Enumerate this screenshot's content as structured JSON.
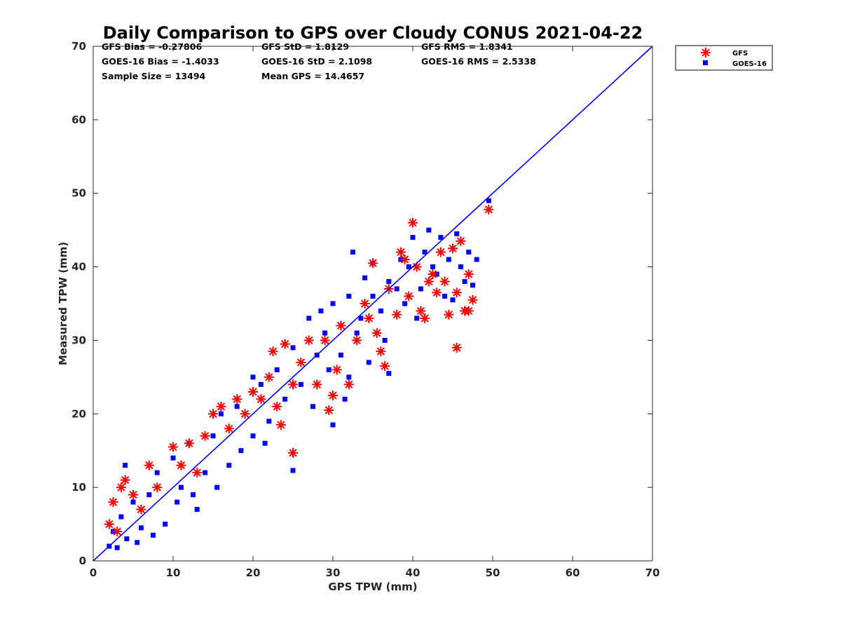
{
  "chart_data": {
    "type": "scatter",
    "title": "Daily Comparison to GPS over Cloudy CONUS 2021-04-22",
    "xlabel": "GPS TPW (mm)",
    "ylabel": "Measured TPW (mm)",
    "xlim": [
      0,
      70
    ],
    "ylim": [
      0,
      70
    ],
    "xticks": [
      "0",
      "10",
      "20",
      "30",
      "40",
      "50",
      "60",
      "70"
    ],
    "yticks": [
      "0",
      "10",
      "20",
      "30",
      "40",
      "50",
      "60",
      "70"
    ],
    "grid": false,
    "legend_position": "outside-top-right",
    "stats": {
      "gfs_bias": "GFS Bias = -0.27806",
      "gfs_std": "GFS StD = 1.8129",
      "gfs_rms": "GFS RMS = 1.8341",
      "goes_bias": "GOES-16 Bias = -1.4033",
      "goes_std": "GOES-16 StD = 2.1098",
      "goes_rms": "GOES-16 RMS = 2.5338",
      "sample_size": "Sample Size = 13494",
      "mean_gps": "Mean GPS = 14.4657"
    },
    "reference_line": {
      "name": "1:1 line",
      "x": [
        0,
        70
      ],
      "y": [
        0,
        70
      ],
      "color": "#0000ff"
    },
    "series": [
      {
        "name": "GOES-16",
        "marker": "square",
        "color": "#0000ff",
        "points": [
          [
            2,
            2
          ],
          [
            2.5,
            4
          ],
          [
            3,
            1.8
          ],
          [
            3.5,
            6
          ],
          [
            4,
            13
          ],
          [
            4.2,
            3
          ],
          [
            5,
            8
          ],
          [
            5.5,
            2.5
          ],
          [
            6,
            4.5
          ],
          [
            7,
            9
          ],
          [
            7.5,
            3.5
          ],
          [
            8,
            12
          ],
          [
            9,
            5
          ],
          [
            10,
            14
          ],
          [
            10.5,
            8
          ],
          [
            11,
            10
          ],
          [
            12,
            16
          ],
          [
            12.5,
            9
          ],
          [
            13,
            7
          ],
          [
            14,
            12
          ],
          [
            15,
            17
          ],
          [
            15.5,
            10
          ],
          [
            16,
            20
          ],
          [
            17,
            13
          ],
          [
            18,
            21
          ],
          [
            18.5,
            15
          ],
          [
            20,
            25
          ],
          [
            20,
            17
          ],
          [
            21,
            24
          ],
          [
            21.5,
            16
          ],
          [
            22,
            19
          ],
          [
            23,
            26
          ],
          [
            24,
            22
          ],
          [
            25,
            12.3
          ],
          [
            25,
            29
          ],
          [
            26,
            24
          ],
          [
            27,
            33
          ],
          [
            27.5,
            21
          ],
          [
            28,
            28
          ],
          [
            28.5,
            34
          ],
          [
            29,
            31
          ],
          [
            29.5,
            26
          ],
          [
            30,
            18.5
          ],
          [
            30,
            35
          ],
          [
            31,
            28
          ],
          [
            31.5,
            22
          ],
          [
            32,
            25
          ],
          [
            32,
            36
          ],
          [
            32.5,
            42
          ],
          [
            33,
            31
          ],
          [
            33.5,
            33
          ],
          [
            34,
            38.5
          ],
          [
            34.5,
            27
          ],
          [
            35,
            36
          ],
          [
            35,
            40.5
          ],
          [
            36,
            34
          ],
          [
            36.5,
            30
          ],
          [
            37,
            38
          ],
          [
            37,
            25.5
          ],
          [
            38,
            37
          ],
          [
            38.5,
            41
          ],
          [
            39,
            35
          ],
          [
            39.5,
            40
          ],
          [
            40,
            44
          ],
          [
            40.5,
            33
          ],
          [
            41,
            37
          ],
          [
            41.5,
            42
          ],
          [
            42,
            45
          ],
          [
            42.5,
            40
          ],
          [
            43,
            39
          ],
          [
            43.5,
            44
          ],
          [
            44,
            36
          ],
          [
            44.5,
            41
          ],
          [
            45,
            35.5
          ],
          [
            45.5,
            44.5
          ],
          [
            46,
            40
          ],
          [
            46.5,
            38
          ],
          [
            47,
            42
          ],
          [
            47.5,
            37.5
          ],
          [
            48,
            41
          ],
          [
            49.5,
            49
          ]
        ]
      },
      {
        "name": "GFS",
        "marker": "asterisk",
        "color": "#ff0000",
        "points": [
          [
            2,
            5
          ],
          [
            2.5,
            8
          ],
          [
            3,
            4
          ],
          [
            3.5,
            10
          ],
          [
            4,
            11
          ],
          [
            5,
            9
          ],
          [
            6,
            7
          ],
          [
            7,
            13
          ],
          [
            8,
            10
          ],
          [
            10,
            15.5
          ],
          [
            11,
            13
          ],
          [
            12,
            16
          ],
          [
            13,
            12
          ],
          [
            14,
            17
          ],
          [
            15,
            20
          ],
          [
            16,
            21
          ],
          [
            17,
            18
          ],
          [
            18,
            22
          ],
          [
            19,
            20
          ],
          [
            20,
            23
          ],
          [
            21,
            22
          ],
          [
            22,
            25
          ],
          [
            22.5,
            28.5
          ],
          [
            23,
            21
          ],
          [
            23.5,
            18.5
          ],
          [
            24,
            29.5
          ],
          [
            25,
            14.7
          ],
          [
            25,
            24
          ],
          [
            26,
            27
          ],
          [
            27,
            30
          ],
          [
            28,
            24
          ],
          [
            29,
            30
          ],
          [
            29.5,
            20.5
          ],
          [
            30,
            22.5
          ],
          [
            30.5,
            26
          ],
          [
            31,
            32
          ],
          [
            32,
            24
          ],
          [
            33,
            30
          ],
          [
            34,
            35
          ],
          [
            34.5,
            33
          ],
          [
            35,
            40.5
          ],
          [
            35.5,
            31
          ],
          [
            36,
            28.5
          ],
          [
            36.5,
            26.5
          ],
          [
            37,
            37
          ],
          [
            38,
            33.5
          ],
          [
            38.5,
            42
          ],
          [
            39,
            41
          ],
          [
            39.5,
            36
          ],
          [
            40,
            46
          ],
          [
            40.5,
            40
          ],
          [
            41,
            34
          ],
          [
            41.5,
            33
          ],
          [
            42,
            38
          ],
          [
            42.5,
            39
          ],
          [
            43,
            36.5
          ],
          [
            43.5,
            42
          ],
          [
            44,
            38
          ],
          [
            44.5,
            33.5
          ],
          [
            45,
            42.5
          ],
          [
            45.5,
            29
          ],
          [
            45.5,
            36.5
          ],
          [
            46,
            43.5
          ],
          [
            46.5,
            34
          ],
          [
            47,
            39
          ],
          [
            47.5,
            35.5
          ],
          [
            47,
            34
          ],
          [
            49.5,
            47.8
          ]
        ]
      }
    ]
  }
}
